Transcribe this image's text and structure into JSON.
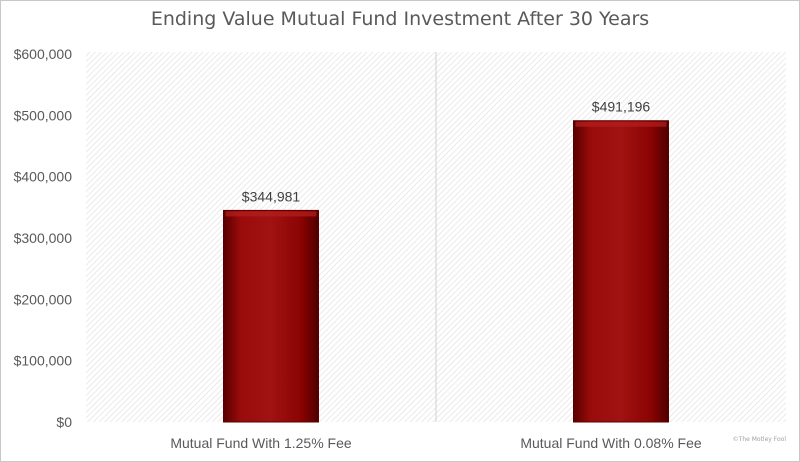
{
  "chart_data": {
    "type": "bar",
    "title": "Ending Value Mutual Fund Investment After 30 Years",
    "categories": [
      "Mutual Fund With 1.25% Fee",
      "Mutual Fund With 0.08% Fee"
    ],
    "values": [
      344981,
      491196
    ],
    "data_labels": [
      "$344,981",
      "$491,196"
    ],
    "ylim": [
      0,
      600000
    ],
    "yticks": [
      0,
      100000,
      200000,
      300000,
      400000,
      500000,
      600000
    ],
    "ytick_labels": [
      "$0",
      "$100,000",
      "$200,000",
      "$300,000",
      "$400,000",
      "$500,000",
      "$600,000"
    ],
    "grid": false,
    "legend": "none",
    "bar_color": "#8b0000"
  },
  "watermark": "©The Motley Fool"
}
